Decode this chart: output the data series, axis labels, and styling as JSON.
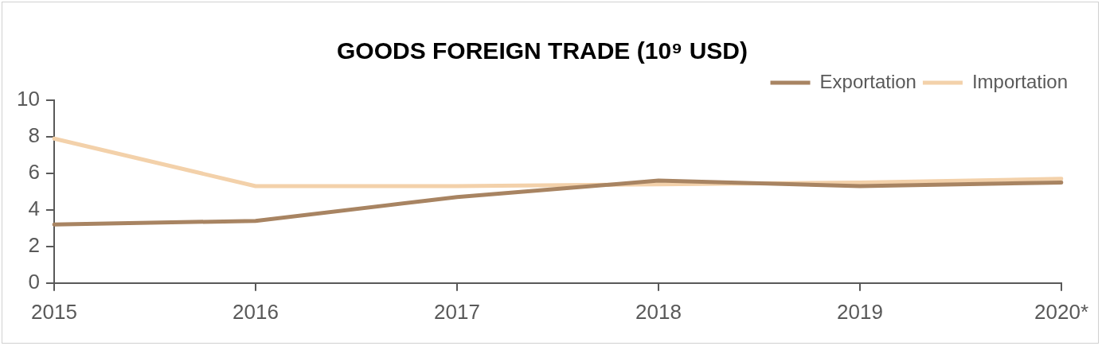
{
  "chart_data": {
    "type": "line",
    "title": "GOODS FOREIGN TRADE (10⁹ USD)",
    "categories": [
      "2015",
      "2016",
      "2017",
      "2018",
      "2019",
      "2020*"
    ],
    "series": [
      {
        "name": "Exportation",
        "color": "#a88462",
        "values": [
          3.2,
          3.4,
          4.7,
          5.6,
          5.3,
          5.5
        ]
      },
      {
        "name": "Importation",
        "color": "#f3d1aa",
        "values": [
          7.9,
          5.3,
          5.3,
          5.4,
          5.5,
          5.7
        ]
      }
    ],
    "ylim": [
      0,
      10
    ],
    "yticks": [
      0,
      2,
      4,
      6,
      8,
      10
    ],
    "grid": false,
    "legend": "top right",
    "marker": "none",
    "line_style": "solid"
  }
}
